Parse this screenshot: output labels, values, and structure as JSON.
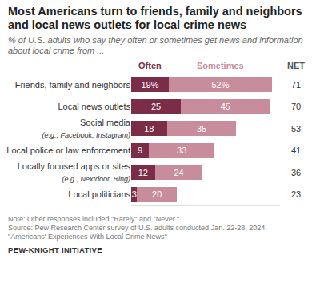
{
  "chart_data": {
    "type": "bar",
    "title": "Most Americans turn to friends, family and neighbors and local news outlets for local crime news",
    "subtitle": "% of U.S. adults who say they often or sometimes get news and information about local crime from ...",
    "categories": [
      "Friends, family and neighbors",
      "Local news outlets",
      "Social media (e.g., Facebook, Instagram)",
      "Local police or law enforcement",
      "Locally focused apps or sites (e.g., Nextdoor, Ring)",
      "Local politicians"
    ],
    "series": [
      {
        "name": "Often",
        "color": "#7b2c47",
        "values": [
          19,
          25,
          18,
          9,
          12,
          3
        ],
        "value_labels": [
          "19%",
          "25",
          "18",
          "9",
          "12",
          "3"
        ]
      },
      {
        "name": "Sometimes",
        "color": "#c88d9c",
        "values": [
          52,
          45,
          35,
          33,
          24,
          20
        ],
        "value_labels": [
          "52%",
          "45",
          "35",
          "33",
          "24",
          "20"
        ]
      }
    ],
    "net": {
      "label": "NET",
      "values": [
        71,
        70,
        53,
        41,
        36,
        23
      ]
    },
    "orientation": "horizontal",
    "stacked": true,
    "data_labels": true,
    "tick_labels": "y",
    "grid": false,
    "xlim": [
      0,
      75
    ],
    "xticks": [],
    "notes": [
      "Note: Other responses included \"Rarely\" and \"Never.\"",
      "Source: Pew Research Center survey of U.S. adults conducted Jan. 22-28, 2024.",
      "\"Americans' Experiences With Local Crime News\""
    ],
    "branding": "PEW-KNIGHT INITIATIVE"
  }
}
